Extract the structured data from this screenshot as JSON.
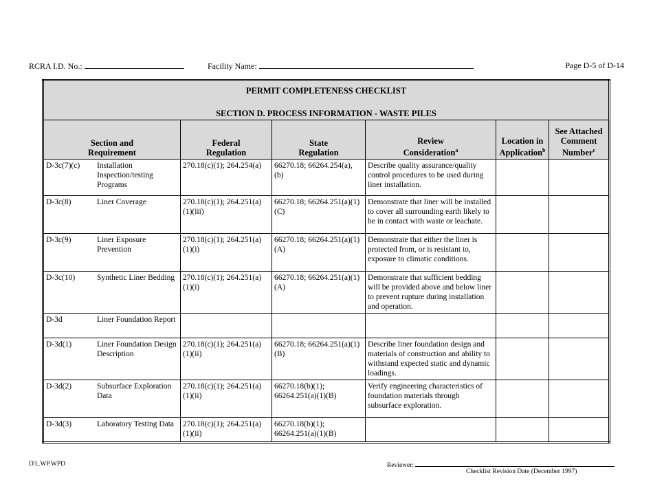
{
  "header": {
    "rcra_label": "RCRA I.D. No.:",
    "facility_label": "Facility Name:",
    "page": "Page D-5 of D-14"
  },
  "table": {
    "title": "PERMIT COMPLETENESS CHECKLIST",
    "subtitle": "SECTION D.  PROCESS INFORMATION - WASTE PILES",
    "columns": [
      {
        "line1": "Section and",
        "line2": "Requirement",
        "sup": ""
      },
      {
        "line1": "Federal",
        "line2": "Regulation",
        "sup": ""
      },
      {
        "line1": "State",
        "line2": "Regulation",
        "sup": ""
      },
      {
        "line1": "Review",
        "line2": "Consideration",
        "sup": "a"
      },
      {
        "line1": "Location in",
        "line2": "Application",
        "sup": "b"
      },
      {
        "line1": "See Attached",
        "line2": "Comment",
        "line3": "Number",
        "sup": "c"
      }
    ],
    "rows": [
      {
        "id": "D-3c(7)(c)",
        "requirement": "Installation Inspection/testing Programs",
        "federal": "270.18(c)(1); 264.254(a)",
        "state": "66270.18; 66264.254(a), (b)",
        "review": "Describe quality assurance/quality control procedures to be used during liner installation."
      },
      {
        "id": "D-3c(8)",
        "requirement": "Liner Coverage",
        "federal": "270.18(c)(1); 264.251(a)(1)(iii)",
        "state": "66270.18; 66264.251(a)(1)(C)",
        "review": "Demonstrate that liner will be installed to cover all surrounding earth likely to be in contact with waste or leachate."
      },
      {
        "id": "D-3c(9)",
        "requirement": "Liner Exposure Prevention",
        "federal": "270.18(c)(1); 264.251(a)(1)(i)",
        "state": "66270.18; 66264.251(a)(1)(A)",
        "review": "Demonstrate that either the liner is protected from, or is resistant to, exposure to climatic conditions."
      },
      {
        "id": "D-3c(10)",
        "requirement": "Synthetic Liner Bedding",
        "federal": "270.18(c)(1); 264.251(a)(1)(i)",
        "state": "66270.18; 66264.251(a)(1)(A)",
        "review": "Demonstrate that sufficient bedding will be provided above and below liner to prevent rupture during installation and operation."
      },
      {
        "id": "D-3d",
        "requirement": "Liner Foundation Report",
        "federal": "",
        "state": "",
        "review": ""
      },
      {
        "id": "D-3d(1)",
        "requirement": "Liner Foundation Design Description",
        "federal": "270.18(c)(1); 264.251(a)(1)(ii)",
        "state": "66270.18; 66264.251(a)(1)(B)",
        "review": "Describe liner foundation design and materials of construction and ability to withstand expected static and dynamic loadings."
      },
      {
        "id": "D-3d(2)",
        "requirement": "Subsurface Exploration Data",
        "federal": "270.18(c)(1); 264.251(a)(1)(ii)",
        "state": "66270.18(b)(1); 66264.251(a)(1)(B)",
        "review": "Verify engineering characteristics of foundation materials through subsurface exploration."
      },
      {
        "id": "D-3d(3)",
        "requirement": "Laboratory Testing Data",
        "federal": "270.18(c)(1); 264.251(a)(1)(ii)",
        "state": "66270.18(b)(1); 66264.251(a)(1)(B)",
        "review": ""
      }
    ]
  },
  "footer": {
    "file": "D3_WP.WPD",
    "reviewer_label": "Reviewer:",
    "revision": "Checklist Revision Date (December 1997)"
  }
}
